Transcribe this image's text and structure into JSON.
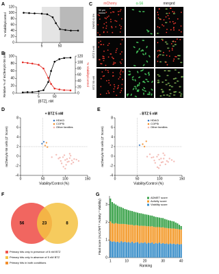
{
  "chart_data": [
    {
      "type": "line",
      "panel": "A",
      "ylabel": "% Viability/control",
      "log_x": true,
      "xlim": [
        0.2,
        1000
      ],
      "xticks": [
        5,
        50
      ],
      "ylim": [
        0,
        120
      ],
      "yticks": [
        0,
        20,
        40,
        60,
        80,
        100,
        120
      ],
      "bands": [
        {
          "range": [
            5,
            50
          ],
          "color": "#e4e4e4"
        },
        {
          "range": [
            50,
            1000
          ],
          "color": "#b9b9b9"
        }
      ],
      "series": [
        {
          "color": "#000000",
          "x": [
            0.5,
            1,
            2,
            5,
            10,
            20,
            30,
            50,
            100,
            200,
            500
          ],
          "values": [
            100,
            99,
            98,
            97,
            95,
            85,
            65,
            45,
            42,
            40,
            40
          ]
        }
      ]
    },
    {
      "type": "line",
      "panel": "B",
      "ylabel": "Relative % of mCherry/α-S6 cells",
      "y2label": "% Viability/control",
      "xlabel": "[BTZ], nM",
      "log_x": true,
      "xlim": [
        0.2,
        1000
      ],
      "xticks": [
        5,
        50
      ],
      "ylim": [
        0,
        100
      ],
      "yticks": [
        0,
        20,
        40,
        60,
        80,
        100
      ],
      "y2lim": [
        0,
        120
      ],
      "y2ticks": [
        0,
        20,
        40,
        60,
        80,
        100,
        120
      ],
      "series": [
        {
          "color": "#000000",
          "x": [
            0.5,
            1,
            2,
            5,
            10,
            20,
            30,
            50,
            100,
            200,
            500
          ],
          "values": [
            2,
            3,
            3,
            5,
            8,
            30,
            60,
            85,
            92,
            95,
            96
          ]
        },
        {
          "color": "#e3261f",
          "axis": "y2",
          "x": [
            0.5,
            1,
            2,
            5,
            10,
            20,
            30,
            50,
            100,
            200,
            500
          ],
          "values": [
            100,
            98,
            96,
            92,
            80,
            50,
            30,
            15,
            12,
            10,
            9
          ]
        }
      ]
    },
    {
      "type": "scatter",
      "panel": "D",
      "title": "+ BTZ 5 nM",
      "xlabel": "Viability/Control (%)",
      "ylabel": "mCherry/α-S6 cells (Z' Score)",
      "xlim": [
        0,
        150
      ],
      "xticks": [
        0,
        50,
        100,
        150
      ],
      "ylim": [
        -4,
        8
      ],
      "yticks": [
        -4,
        -2,
        0,
        2,
        4,
        6,
        8
      ],
      "reference_lines": {
        "x": 50,
        "y": 2
      },
      "series": [
        {
          "name": "HDACi",
          "color": "#3a78c2",
          "x": [
            48,
            52
          ],
          "y": [
            2.6,
            3.0
          ]
        },
        {
          "name": "COPSi",
          "color": "#f28e2b",
          "x": [
            55,
            60,
            58
          ],
          "y": [
            2.2,
            1.9,
            2.8
          ]
        },
        {
          "name": "Other families",
          "color": "#f2b3ab",
          "x": [
            85,
            90,
            95,
            100,
            105,
            110,
            115,
            120,
            92,
            98,
            102,
            108,
            112,
            118,
            125,
            88,
            96,
            104,
            114,
            80,
            70,
            130,
            100,
            110
          ],
          "y": [
            -0.5,
            -1,
            -0.2,
            -0.8,
            -1.2,
            -0.4,
            -0.9,
            -0.6,
            -1.5,
            0.2,
            -1.8,
            -1.1,
            0.1,
            -1.3,
            -0.7,
            -0.3,
            -2.2,
            -0.6,
            -1.6,
            0.3,
            -0.2,
            -1,
            -2.6,
            0.5
          ]
        }
      ]
    },
    {
      "type": "scatter",
      "panel": "E",
      "title": "- BTZ 5 nM",
      "xlabel": "Viability/Control (%)",
      "ylabel": "mCherry/α-S6 cells (Z' Score)",
      "xlim": [
        0,
        150
      ],
      "xticks": [
        0,
        50,
        100,
        150
      ],
      "ylim": [
        -4,
        8
      ],
      "yticks": [
        -4,
        -2,
        0,
        2,
        4,
        6,
        8
      ],
      "reference_lines": {
        "x": 50,
        "y": 2
      },
      "series": [
        {
          "name": "HDACi",
          "color": "#3a78c2",
          "x": [
            55
          ],
          "y": [
            2.3
          ]
        },
        {
          "name": "COPSi",
          "color": "#f28e2b",
          "x": [
            62,
            66,
            70
          ],
          "y": [
            2.5,
            2.0,
            3.1
          ]
        },
        {
          "name": "Other families",
          "color": "#f2b3ab",
          "x": [
            82,
            88,
            94,
            99,
            104,
            109,
            116,
            122,
            90,
            97,
            101,
            107,
            111,
            119,
            127,
            86,
            95,
            103,
            113,
            78,
            72,
            132,
            98,
            108
          ],
          "y": [
            -0.3,
            -0.9,
            -0.1,
            -0.7,
            -1.3,
            -0.5,
            -1,
            -0.5,
            -1.4,
            0.3,
            -1.9,
            -1.2,
            0.2,
            -1.2,
            -0.8,
            -0.2,
            -2.3,
            -0.5,
            -1.7,
            0.4,
            -0.1,
            -1.1,
            -2.5,
            0.6
          ]
        }
      ]
    },
    {
      "type": "venn",
      "panel": "F",
      "values": [
        56,
        23,
        8
      ],
      "colors": [
        "#f0554f",
        "#f5c242"
      ],
      "legend": [
        {
          "text": "Primary hits only in presence of 5 nM BTZ",
          "color": "#f0554f"
        },
        {
          "text": "Primary hits only in absence of 5 nM BTZ",
          "color": "#f5c242"
        },
        {
          "text": "Primary hits in both conditions",
          "color": "#f28e2b"
        }
      ]
    },
    {
      "type": "bar",
      "panel": "G",
      "stacked": true,
      "ylabel": "Final score (AUC/WT * Activity * Viability)",
      "xlabel": "Ranking",
      "ylim": [
        0,
        3.5
      ],
      "yticks": [
        0,
        1,
        2,
        3
      ],
      "categories": [
        1,
        null,
        null,
        null,
        null,
        null,
        null,
        null,
        null,
        10,
        null,
        null,
        null,
        null,
        null,
        null,
        null,
        null,
        null,
        20,
        null,
        null,
        null,
        null,
        null,
        null,
        null,
        null,
        null,
        30,
        null,
        null,
        null,
        null,
        null,
        null,
        null,
        null,
        null,
        40
      ],
      "legend_order": [
        2,
        1,
        0
      ],
      "series": [
        {
          "name": "Viability score",
          "color": "#3b8fc9",
          "values": [
            0.95,
            0.9,
            0.92,
            0.88,
            0.9,
            0.85,
            0.93,
            0.87,
            0.9,
            0.86,
            0.88,
            0.84,
            0.9,
            0.82,
            0.86,
            0.88,
            0.8,
            0.85,
            0.83,
            0.87,
            0.8,
            0.84,
            0.82,
            0.86,
            0.78,
            0.83,
            0.8,
            0.85,
            0.79,
            0.82,
            0.78,
            0.8,
            0.76,
            0.8,
            0.77,
            0.79,
            0.75,
            0.78,
            0.74,
            0.76
          ]
        },
        {
          "name": "Activity score",
          "color": "#f39a2b",
          "values": [
            1.1,
            1.05,
            1.0,
            1.08,
            1.02,
            1.06,
            0.98,
            1.04,
            1.0,
            1.03,
            0.99,
            1.02,
            0.96,
            1.0,
            0.98,
            0.95,
            1.0,
            0.96,
            0.97,
            0.93,
            0.98,
            0.94,
            0.95,
            0.92,
            0.96,
            0.9,
            0.93,
            0.88,
            0.92,
            0.9,
            0.91,
            0.88,
            0.9,
            0.86,
            0.88,
            0.86,
            0.88,
            0.84,
            0.86,
            0.83
          ]
        },
        {
          "name": "ADMET score",
          "color": "#3aa24a",
          "values": [
            1.3,
            1.2,
            1.15,
            1.05,
            1.02,
            0.98,
            0.95,
            0.9,
            0.86,
            0.84,
            0.82,
            0.8,
            0.78,
            0.78,
            0.74,
            0.72,
            0.72,
            0.7,
            0.68,
            0.66,
            0.66,
            0.64,
            0.62,
            0.6,
            0.6,
            0.58,
            0.56,
            0.54,
            0.54,
            0.52,
            0.5,
            0.48,
            0.46,
            0.44,
            0.42,
            0.4,
            0.36,
            0.32,
            0.26,
            0.2
          ]
        }
      ]
    }
  ],
  "image_panel": {
    "panel": "C",
    "columns": [
      "mCherry",
      "α-S6",
      "merged"
    ],
    "rows": [
      "DMSO 0.1%",
      "BTZ 5 nM",
      "BTZ 50 nM"
    ],
    "scale_bar": "50 μm"
  }
}
